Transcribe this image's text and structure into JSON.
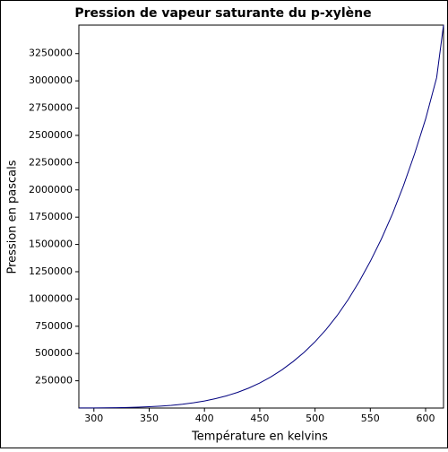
{
  "chart_data": {
    "type": "line",
    "title": "Pression de vapeur saturante du p-xylène",
    "x_label": "Température en kelvins",
    "y_label": "Pression en pascals",
    "x": [
      286.4,
      290,
      300,
      310,
      320,
      330,
      340,
      350,
      360,
      370,
      380,
      390,
      400,
      410,
      420,
      430,
      440,
      450,
      460,
      470,
      480,
      490,
      500,
      510,
      520,
      530,
      540,
      550,
      560,
      570,
      580,
      590,
      600,
      610,
      616.2
    ],
    "series": [
      {
        "color": "#00007f",
        "values": [
          550,
          700,
          1200,
          2000,
          3300,
          5200,
          8000,
          12000,
          17500,
          25000,
          35000,
          48000,
          65000,
          86000,
          112000,
          144000,
          183000,
          230000,
          285000,
          350000,
          425000,
          510000,
          608000,
          720000,
          848000,
          995000,
          1160000,
          1345000,
          1550000,
          1780000,
          2040000,
          2330000,
          2650000,
          3030000,
          3511000
        ]
      }
    ],
    "xlim": [
      286.4,
      616.2
    ],
    "ylim": [
      0,
      3511000
    ],
    "xticks": [
      300,
      350,
      400,
      450,
      500,
      550,
      600
    ],
    "yticks": [
      250000,
      500000,
      750000,
      1000000,
      1250000,
      1500000,
      1750000,
      2000000,
      2250000,
      2500000,
      2750000,
      3000000,
      3250000
    ]
  }
}
